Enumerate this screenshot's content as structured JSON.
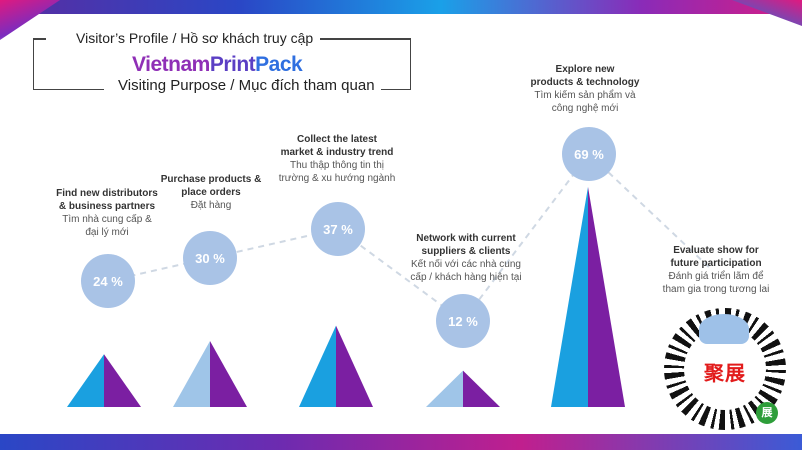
{
  "header": {
    "profile_title": "Visitor’s Profile / Hồ sơ khách truy cập",
    "brand_part1": "Vietnam",
    "brand_part2": "Print",
    "brand_part3": "Pack",
    "purpose_title": "Visiting Purpose / Mục đích tham quan"
  },
  "colors": {
    "pyramid_left": "#1aa0e0",
    "pyramid_right": "#7b1fa2",
    "pyramid_left_alt": "#9fc5e8",
    "circle_fill": "#a9c3e6",
    "dashed_line": "#cfd8e3"
  },
  "chart_data": {
    "type": "bar",
    "title": "Visiting Purpose / Mục đích tham quan",
    "ylim": [
      0,
      100
    ],
    "unit": "%",
    "categories": [
      {
        "en": [
          "Find new distributors",
          "& business partners"
        ],
        "vi": [
          "Tìm nhà cung cấp &",
          "đại lý mới"
        ]
      },
      {
        "en": [
          "Purchase products &",
          "place orders"
        ],
        "vi": [
          "Đặt hàng"
        ]
      },
      {
        "en": [
          "Collect the latest",
          "market & industry trend"
        ],
        "vi": [
          "Thu thập thông tin thị",
          "trường & xu hướng ngành"
        ]
      },
      {
        "en": [
          "Network with current",
          "suppliers & clients"
        ],
        "vi": [
          "Kết nối với các nhà cung",
          "cấp / khách hàng hiện tại"
        ]
      },
      {
        "en": [
          "Explore new",
          "products & technology"
        ],
        "vi": [
          "Tìm kiếm sản phẩm và",
          "công nghệ mới"
        ]
      },
      {
        "en": [
          "Evaluate show for",
          "future participation"
        ],
        "vi": [
          "Đánh giá triển lãm để",
          "tham gia trong tương lai"
        ]
      }
    ],
    "values": [
      24,
      30,
      37,
      12,
      69,
      null
    ],
    "labels": [
      "24 %",
      "30 %",
      "37 %",
      "12 %",
      "69 %",
      ""
    ]
  },
  "qr": {
    "center_text": "聚展",
    "badge_text": "展"
  }
}
